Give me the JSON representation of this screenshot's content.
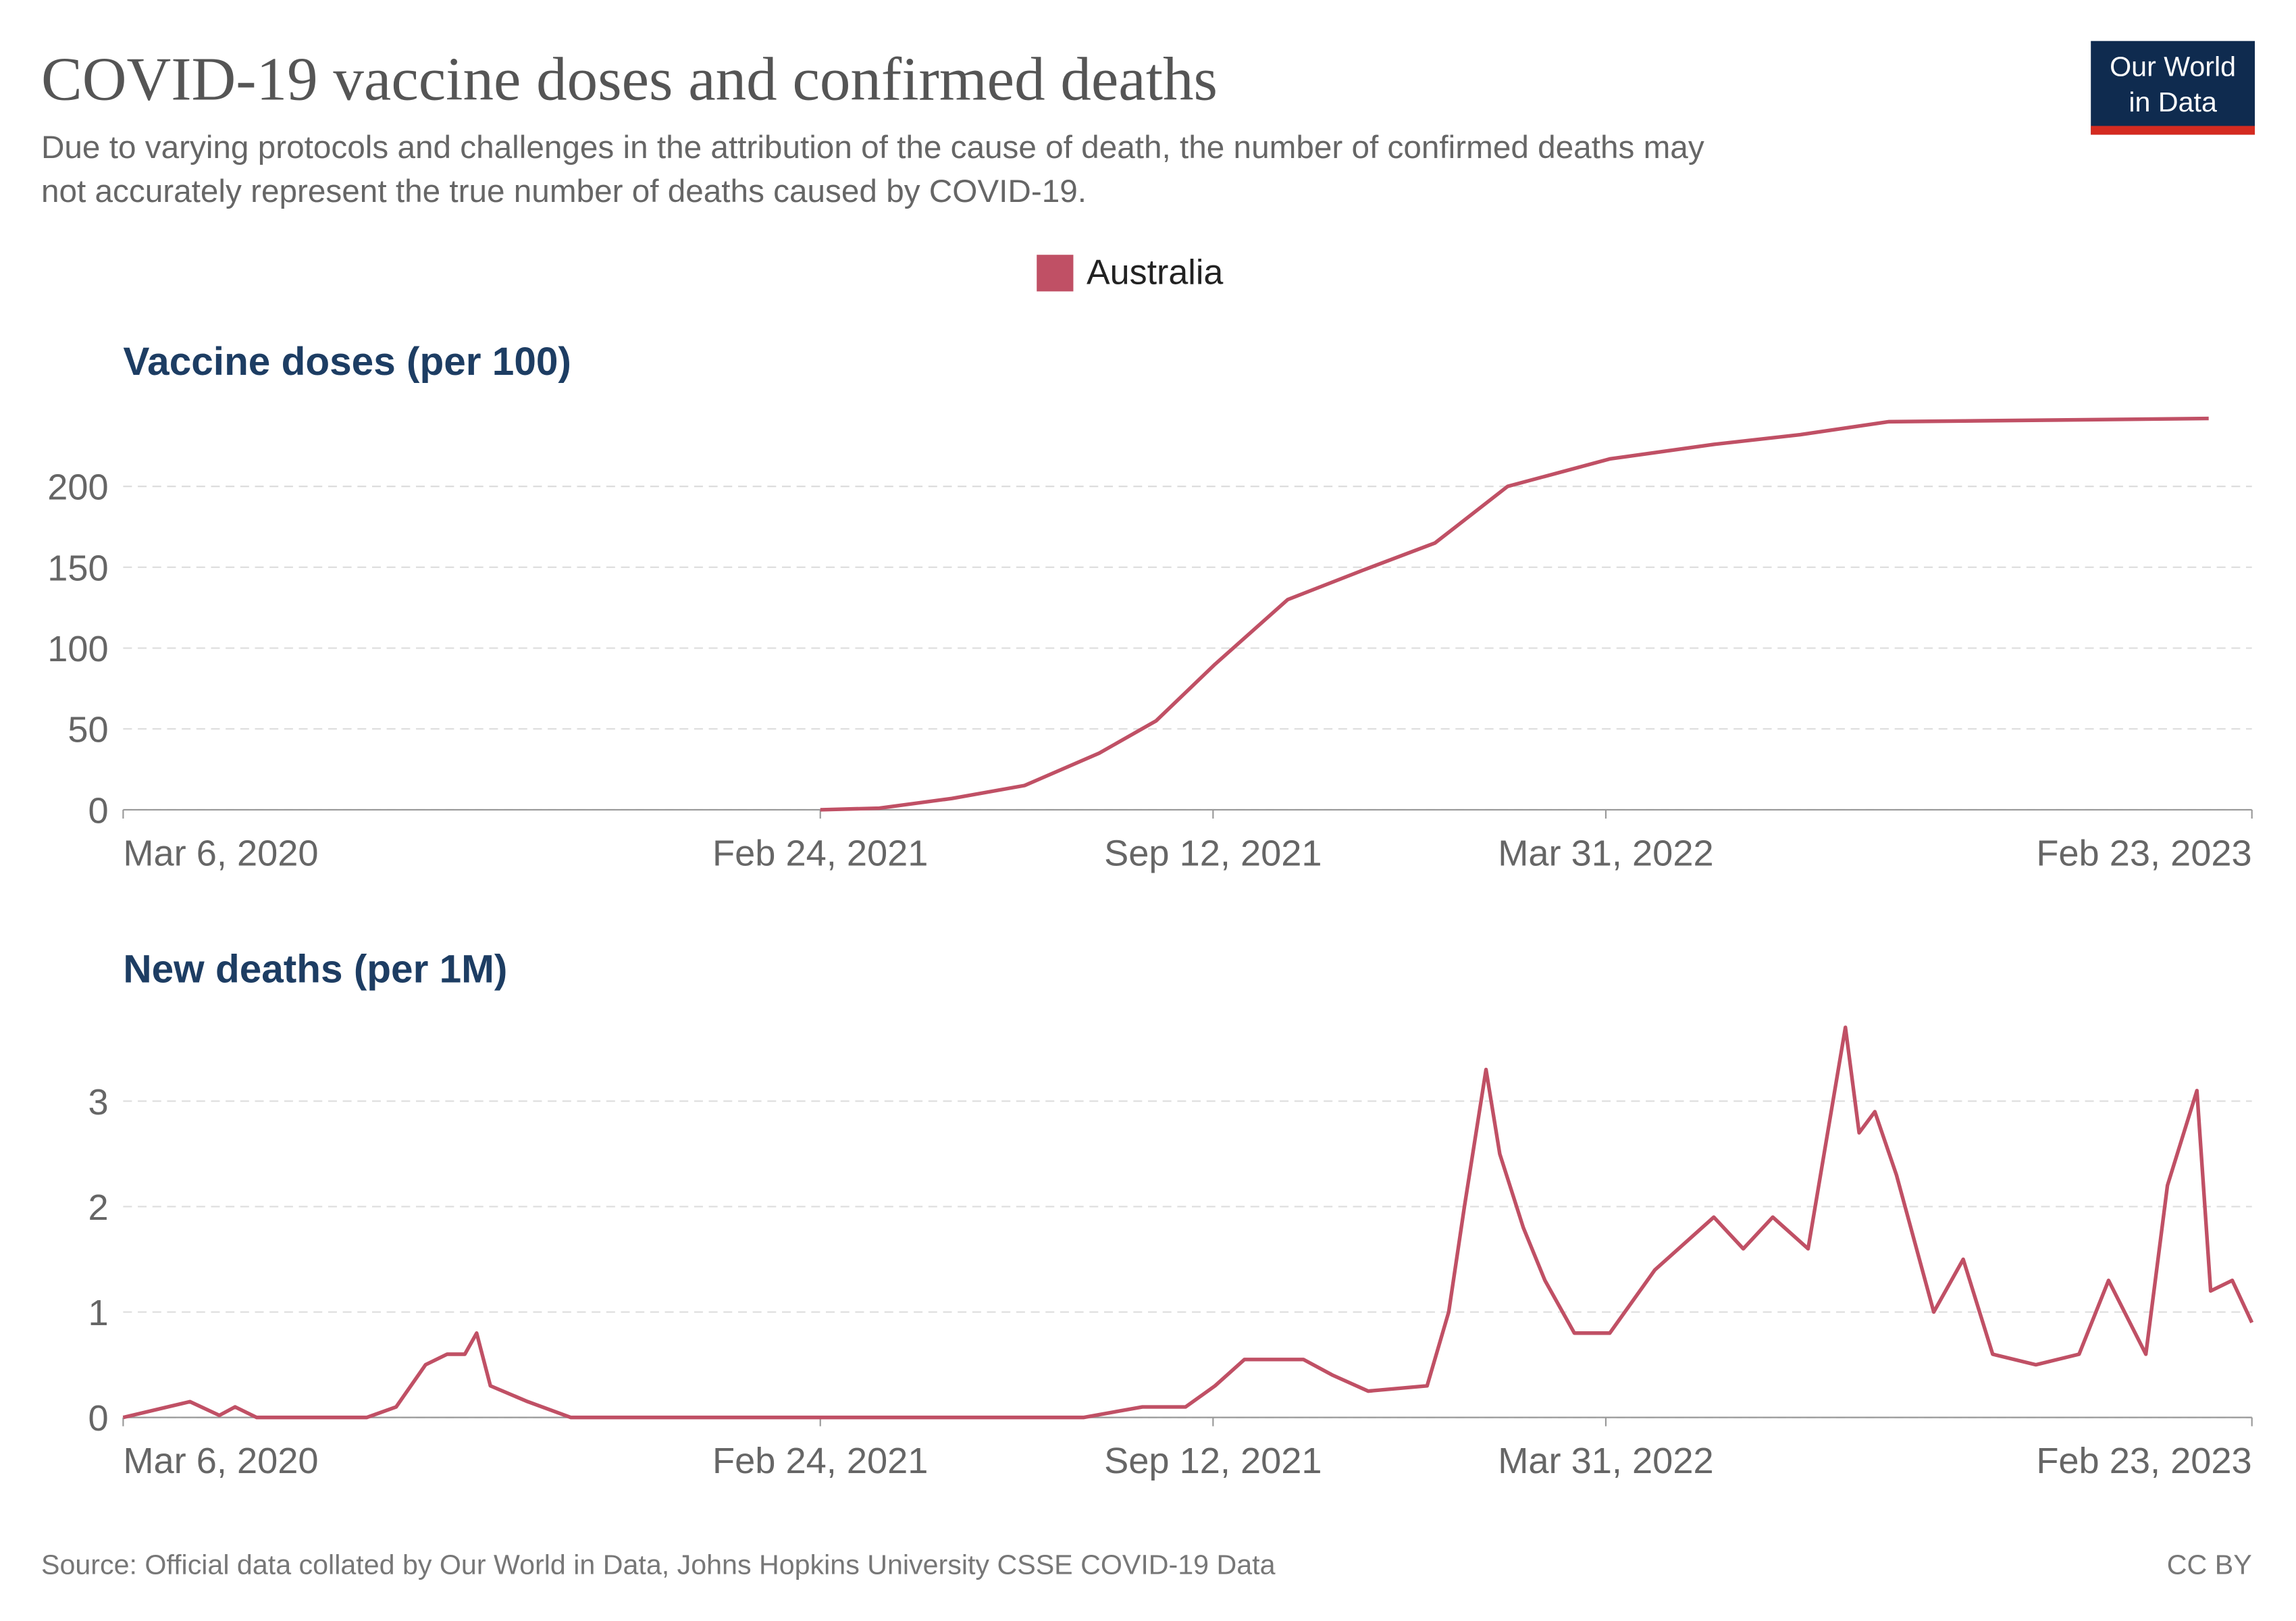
{
  "title": "COVID-19 vaccine doses and confirmed deaths",
  "subtitle": [
    "Due to varying protocols and challenges in the attribution of the cause of death, the number of confirmed deaths may",
    "not accurately represent the true number of deaths caused by COVID-19."
  ],
  "logo": [
    "Our World",
    "in Data"
  ],
  "source": "Source: Official data collated by Our World in Data, Johns Hopkins University CSSE COVID-19 Data",
  "license": "CC BY",
  "chart_data": [
    {
      "type": "line",
      "title": "Vaccine doses (per 100)",
      "x": [
        "2021-02-24",
        "2021-03-26",
        "2021-05-02",
        "2021-06-08",
        "2021-07-16",
        "2021-08-14",
        "2021-09-13",
        "2021-10-20",
        "2021-11-27",
        "2022-01-03",
        "2022-02-09",
        "2022-04-02",
        "2022-05-25",
        "2022-07-08",
        "2022-08-22",
        "2022-11-12",
        "2023-02-01"
      ],
      "series": [
        {
          "name": "Australia",
          "color": "#c05065",
          "values": [
            0,
            1,
            7,
            15,
            35,
            55,
            90,
            130,
            148,
            165,
            200,
            217,
            226,
            232,
            240,
            241,
            242
          ]
        }
      ],
      "xlim": [
        "2020-03-06",
        "2023-02-23"
      ],
      "xticks": [
        {
          "value": "2020-03-06",
          "label": "Mar 6, 2020"
        },
        {
          "value": "2021-02-24",
          "label": "Feb 24, 2021"
        },
        {
          "value": "2021-09-12",
          "label": "Sep 12, 2021"
        },
        {
          "value": "2022-03-31",
          "label": "Mar 31, 2022"
        },
        {
          "value": "2023-02-23",
          "label": "Feb 23, 2023"
        }
      ],
      "ylim": [
        0,
        240
      ],
      "yticks": [
        0,
        50,
        100,
        150,
        200
      ],
      "grid": true
    },
    {
      "type": "line",
      "title": "New deaths (per 1M)",
      "x": [
        "2020-03-06",
        "2020-04-09",
        "2020-04-24",
        "2020-05-02",
        "2020-05-13",
        "2020-07-08",
        "2020-07-23",
        "2020-08-07",
        "2020-08-18",
        "2020-08-27",
        "2020-09-02",
        "2020-09-09",
        "2020-09-28",
        "2020-10-20",
        "2021-07-08",
        "2021-08-07",
        "2021-08-29",
        "2021-09-13",
        "2021-09-28",
        "2021-10-28",
        "2021-11-12",
        "2021-11-30",
        "2021-12-30",
        "2022-01-10",
        "2022-01-18",
        "2022-01-29",
        "2022-02-05",
        "2022-02-17",
        "2022-02-28",
        "2022-03-15",
        "2022-04-02",
        "2022-04-25",
        "2022-05-25",
        "2022-06-09",
        "2022-06-24",
        "2022-07-12",
        "2022-07-31",
        "2022-08-07",
        "2022-08-15",
        "2022-08-26",
        "2022-09-14",
        "2022-09-29",
        "2022-10-14",
        "2022-11-05",
        "2022-11-27",
        "2022-12-12",
        "2022-12-31",
        "2023-01-11",
        "2023-01-26",
        "2023-02-02",
        "2023-02-13",
        "2023-02-23"
      ],
      "series": [
        {
          "name": "Australia",
          "color": "#c05065",
          "values": [
            0,
            0.15,
            0.02,
            0.1,
            0,
            0,
            0.1,
            0.5,
            0.6,
            0.6,
            0.8,
            0.3,
            0.15,
            0,
            0,
            0.1,
            0.1,
            0.3,
            0.55,
            0.55,
            0.4,
            0.25,
            0.3,
            1.0,
            2.0,
            3.3,
            2.5,
            1.8,
            1.3,
            0.8,
            0.8,
            1.4,
            1.9,
            1.6,
            1.9,
            1.6,
            3.7,
            2.7,
            2.9,
            2.3,
            1.0,
            1.5,
            0.6,
            0.5,
            0.6,
            1.3,
            0.6,
            2.2,
            3.1,
            1.2,
            1.3,
            0.9
          ]
        }
      ],
      "xlim": [
        "2020-03-06",
        "2023-02-23"
      ],
      "xticks": [
        {
          "value": "2020-03-06",
          "label": "Mar 6, 2020"
        },
        {
          "value": "2021-02-24",
          "label": "Feb 24, 2021"
        },
        {
          "value": "2021-09-12",
          "label": "Sep 12, 2021"
        },
        {
          "value": "2022-03-31",
          "label": "Mar 31, 2022"
        },
        {
          "value": "2023-02-23",
          "label": "Feb 23, 2023"
        }
      ],
      "ylim": [
        0,
        3.75
      ],
      "yticks": [
        0,
        1,
        2,
        3
      ],
      "grid": true
    }
  ]
}
